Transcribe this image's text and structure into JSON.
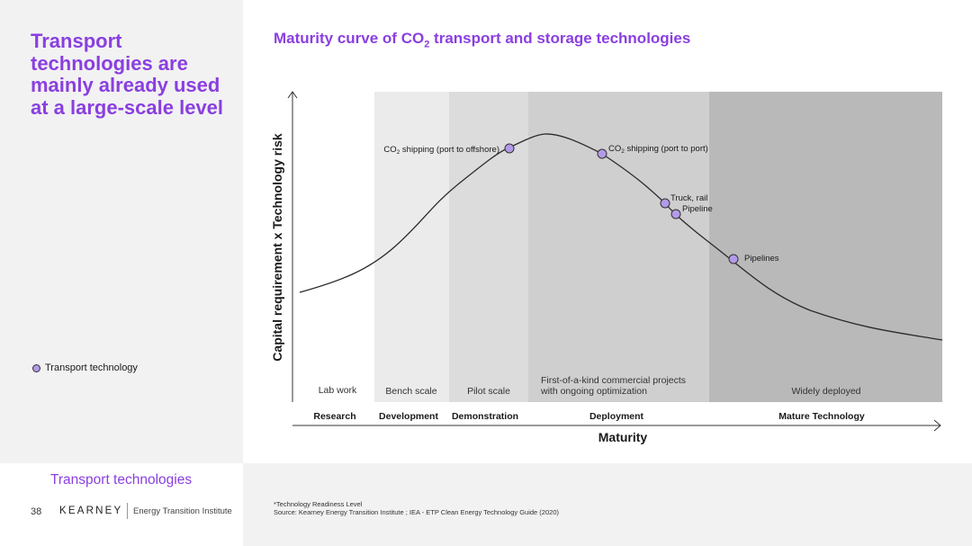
{
  "left_title": "Transport technologies are mainly already used at a large-scale level",
  "legend": {
    "label": "Transport technology",
    "dot_color": "#b39ae8"
  },
  "section_label": "Transport technologies",
  "footer": {
    "page_number": "38",
    "logo": "KEARNEY",
    "logo_sub": "Energy Transition Institute",
    "footnote_line1": "*Technology Readiness Level",
    "footnote_line2": "Source: Kearney Energy Transition Institute ; IEA - ETP Clean Energy Technology Guide (2020)"
  },
  "chart": {
    "title_pre": "Maturity curve of CO",
    "title_sub": "2",
    "title_post": " transport and storage technologies",
    "y_axis_label": "Capital requirement x Technology  risk",
    "x_axis_label": "Maturity",
    "bands": [
      {
        "label": "Lab work",
        "stage": "Research",
        "fill": "#ffffff"
      },
      {
        "label": "Bench scale",
        "stage": "Development",
        "fill": "#ebebeb"
      },
      {
        "label": "Pilot scale",
        "stage": "Demonstration",
        "fill": "#dcdcdc"
      },
      {
        "label_line1": "First-of-a-kind commercial projects",
        "label_line2": "with ongoing optimization",
        "stage": "Deployment",
        "fill": "#cfcfcf"
      },
      {
        "label": "Widely deployed",
        "stage": "Mature Technology",
        "fill": "#b9b9b9"
      }
    ],
    "points": [
      {
        "pre": "CO",
        "sub": "2",
        "post": " shipping (port to offshore)"
      },
      {
        "pre": "CO",
        "sub": "2",
        "post": " shipping (port to port)"
      },
      {
        "pre": "Truck, rail",
        "sub": "",
        "post": ""
      },
      {
        "pre": "Pipeline",
        "sub": "",
        "post": ""
      },
      {
        "pre": "Pipelines",
        "sub": "",
        "post": ""
      }
    ]
  }
}
